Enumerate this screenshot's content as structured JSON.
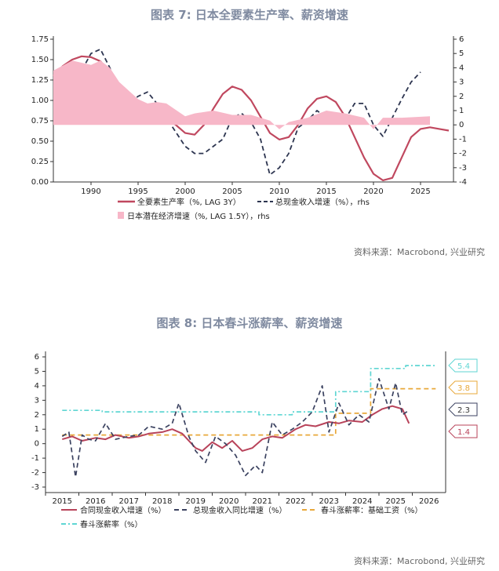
{
  "chart_data": [
    {
      "type": "line",
      "title": "图表 7:  日本全要素生产率、薪资增速",
      "ylim": [
        0,
        1.75
      ],
      "y2lim": [
        -4,
        6
      ],
      "xlim": [
        1986,
        2028.5
      ],
      "xticks": [
        1990,
        1995,
        2000,
        2005,
        2010,
        2015,
        2020,
        2025
      ],
      "yticks": [
        "0.00",
        "0.25",
        "0.50",
        "0.75",
        "1.00",
        "1.25",
        "1.50",
        "1.75"
      ],
      "y2ticks": [
        -4,
        -3,
        -2,
        -1,
        0,
        1,
        2,
        3,
        4,
        5,
        6
      ],
      "series": [
        {
          "name": "全要素生产率（%, LAG 3Y）",
          "axis": "left",
          "style": "line",
          "color": "#c0485f",
          "x": [
            1986,
            1987,
            1988,
            1989,
            1990,
            1991,
            1992,
            1993,
            1994,
            1995,
            1996,
            1997,
            1998,
            1999,
            2000,
            2001,
            2002,
            2003,
            2004,
            2005,
            2006,
            2007,
            2008,
            2009,
            2010,
            2011,
            2012,
            2013,
            2014,
            2015,
            2016,
            2017,
            2018,
            2019,
            2020,
            2021,
            2022,
            2023,
            2024,
            2025,
            2026,
            2027,
            2028
          ],
          "y": [
            1.3,
            1.42,
            1.5,
            1.54,
            1.53,
            1.48,
            1.35,
            1.15,
            1.0,
            0.95,
            0.88,
            0.82,
            0.78,
            0.7,
            0.6,
            0.58,
            0.7,
            0.9,
            1.08,
            1.17,
            1.13,
            1.0,
            0.8,
            0.6,
            0.52,
            0.55,
            0.7,
            0.9,
            1.02,
            1.05,
            0.98,
            0.8,
            0.55,
            0.3,
            0.1,
            0.02,
            0.05,
            0.3,
            0.55,
            0.65,
            0.67,
            0.65,
            0.63
          ]
        },
        {
          "name": "总现金收入增速（%），rhs",
          "axis": "right",
          "style": "dash",
          "color": "#2d3550",
          "x": [
            1986,
            1987,
            1988,
            1989,
            1990,
            1991,
            1992,
            1993,
            1994,
            1995,
            1996,
            1997,
            1998,
            1999,
            2000,
            2001,
            2002,
            2003,
            2004,
            2005,
            2006,
            2007,
            2008,
            2009,
            2010,
            2011,
            2012,
            2013,
            2014,
            2015,
            2016,
            2017,
            2018,
            2019,
            2020,
            2021,
            2022,
            2023,
            2024,
            2025
          ],
          "y": [
            3,
            2.5,
            3,
            3.8,
            5,
            5.3,
            4,
            2,
            1.5,
            2,
            2.3,
            1.5,
            0.5,
            -0.5,
            -1.5,
            -2,
            -2,
            -1.5,
            -1,
            0.5,
            0.8,
            0.2,
            -1,
            -3.5,
            -3,
            -2,
            -0.2,
            0.3,
            1,
            0.5,
            0.5,
            0.4,
            1.5,
            1.5,
            0,
            -0.8,
            0.5,
            1.8,
            3,
            3.7
          ]
        },
        {
          "name": "日本潜在经济增速（%, LAG 1.5Y），rhs",
          "axis": "right",
          "style": "area",
          "color": "#f7b7c8",
          "x": [
            1986,
            1988,
            1990,
            1991,
            1992,
            1993,
            1995,
            1996,
            1997,
            1998,
            2000,
            2001,
            2003,
            2005,
            2007,
            2009,
            2010,
            2011,
            2013,
            2015,
            2017,
            2019,
            2020,
            2021,
            2023,
            2026
          ],
          "y": [
            3.8,
            4.5,
            4.2,
            4.5,
            4,
            3.0,
            1.8,
            1.5,
            1.6,
            1.5,
            0.6,
            0.8,
            1.0,
            0.7,
            0.7,
            0.3,
            -0.3,
            0.2,
            0.5,
            1.0,
            0.8,
            0.5,
            -0.3,
            0.5,
            0.5,
            0.6
          ]
        }
      ],
      "source": "资料来源：Macrobond, 兴业研究"
    },
    {
      "type": "line",
      "title": "图表 8:  日本春斗涨薪率、薪资增速",
      "ylim": [
        -3,
        6
      ],
      "xlim": [
        2014.5,
        2026.5
      ],
      "xticks": [
        2015,
        2016,
        2017,
        2018,
        2019,
        2020,
        2021,
        2022,
        2023,
        2024,
        2025,
        2026
      ],
      "yticks": [
        -3,
        -2,
        -1,
        0,
        1,
        2,
        3,
        4,
        5,
        6
      ],
      "series": [
        {
          "name": "合同现金收入增速（%）",
          "style": "line",
          "color": "#b8435a",
          "last_label": "1.4",
          "x": [
            2015,
            2015.3,
            2015.6,
            2016,
            2016.3,
            2016.6,
            2017,
            2017.3,
            2017.6,
            2018,
            2018.3,
            2018.6,
            2019,
            2019.2,
            2019.5,
            2019.8,
            2020.1,
            2020.4,
            2020.7,
            2021,
            2021.3,
            2021.6,
            2022,
            2022.3,
            2022.6,
            2023,
            2023.3,
            2023.6,
            2024,
            2024.3,
            2024.6,
            2024.9,
            2025.2,
            2025.4
          ],
          "y": [
            0.3,
            0.5,
            0.2,
            0.4,
            0.3,
            0.6,
            0.4,
            0.5,
            0.7,
            0.8,
            1.0,
            0.7,
            -0.3,
            -0.5,
            0.1,
            -0.3,
            0.2,
            -0.5,
            -0.3,
            0.3,
            0.5,
            0.4,
            1.0,
            1.3,
            1.2,
            1.5,
            1.4,
            1.6,
            1.5,
            2.0,
            2.4,
            2.6,
            2.4,
            1.4
          ]
        },
        {
          "name": "总现金收入同比增速（%）",
          "style": "dash",
          "color": "#3b4260",
          "last_label": "2.3",
          "x": [
            2015,
            2015.2,
            2015.4,
            2015.6,
            2015.8,
            2016,
            2016.3,
            2016.6,
            2017,
            2017.3,
            2017.6,
            2018,
            2018.3,
            2018.5,
            2018.8,
            2019,
            2019.3,
            2019.6,
            2019.9,
            2020.2,
            2020.5,
            2020.8,
            2021,
            2021.3,
            2021.6,
            2021.9,
            2022.2,
            2022.5,
            2022.8,
            2023,
            2023.3,
            2023.6,
            2023.9,
            2024.2,
            2024.5,
            2024.8,
            2025,
            2025.2,
            2025.4
          ],
          "y": [
            0.5,
            0.8,
            -2.3,
            0.6,
            0.3,
            0.2,
            1.4,
            0.3,
            0.5,
            0.6,
            1.2,
            1.0,
            1.4,
            2.8,
            0.5,
            -0.5,
            -1.3,
            0.5,
            0,
            -0.8,
            -2.2,
            -1.5,
            -2.0,
            1.5,
            0.6,
            1.0,
            1.5,
            2.2,
            4.0,
            0.8,
            2.8,
            1.3,
            2.0,
            1.5,
            4.5,
            2.4,
            4.2,
            2.0,
            2.3
          ]
        },
        {
          "name": "春斗涨薪率：基础工资（%）",
          "style": "dash",
          "color": "#e8a83a",
          "last_label": "3.8",
          "x": [
            2015,
            2023.2,
            2023.2,
            2024.25,
            2024.25,
            2026.2
          ],
          "y": [
            0.6,
            0.6,
            2.1,
            2.1,
            3.8,
            3.8
          ]
        },
        {
          "name": "春斗涨薪率（%）",
          "style": "dashdot",
          "color": "#5fd6d3",
          "last_label": "5.4",
          "x": [
            2015,
            2016.2,
            2016.2,
            2020.9,
            2020.9,
            2021.9,
            2021.9,
            2023.2,
            2023.2,
            2024.25,
            2024.25,
            2025.3,
            2025.3,
            2026.2
          ],
          "y": [
            2.3,
            2.3,
            2.2,
            2.2,
            2.0,
            2.0,
            2.2,
            2.2,
            3.6,
            3.6,
            5.2,
            5.2,
            5.4,
            5.4
          ]
        }
      ],
      "source": "资料来源：Macrobond, 兴业研究"
    }
  ]
}
